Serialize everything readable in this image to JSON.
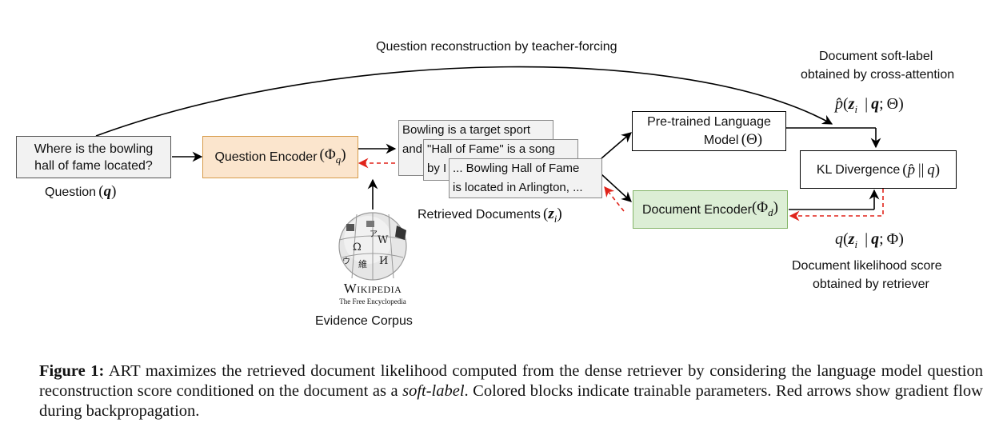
{
  "top_arrow_label": "Question reconstruction by teacher-forcing",
  "soft_label_line1": "Document soft-label",
  "soft_label_line2": "obtained by cross-attention",
  "question": {
    "line1": "Where is the bowling",
    "line2": "hall of fame located?",
    "caption_prefix": "Question",
    "symbol": "q"
  },
  "question_encoder": {
    "label": "Question Encoder",
    "symbol": "Φ",
    "subscript": "q",
    "fill": "#fbe5cd",
    "border": "#d79b4a"
  },
  "retrieved_docs": {
    "doc1_line1": "Bowling is a target sport",
    "doc1_line2": "and",
    "doc2_line1": "\"Hall of Fame\" is a song",
    "doc2_line2": "by I",
    "doc3_line1": "... Bowling Hall of Fame",
    "doc3_line2": "is located in Arlington, ...",
    "caption_prefix": "Retrieved Documents",
    "symbol": "z",
    "subscript": "i"
  },
  "plm": {
    "line1": "Pre-trained Language",
    "line2": "Model",
    "symbol": "Θ"
  },
  "kl": {
    "label": "KL Divergence",
    "p_hat": "p̂",
    "q": "q"
  },
  "document_encoder": {
    "label": "Document Encoder",
    "symbol": "Φ",
    "subscript": "d",
    "fill": "#dceed5",
    "border": "#82b366"
  },
  "p_formula": {
    "p": "p̂",
    "z": "z",
    "i": "i",
    "q": "q",
    "theta": "Θ"
  },
  "q_formula": {
    "q": "q",
    "z": "z",
    "i": "i",
    "qb": "q",
    "phi": "Φ"
  },
  "likelihood_line1": "Document likelihood score",
  "likelihood_line2": "obtained by retriever",
  "wikipedia": {
    "title": "Wikipedia",
    "subtitle": "The Free Encyclopedia",
    "caption": "Evidence Corpus",
    "glyphs": [
      "Ω",
      "W",
      "И",
      "維",
      "ウ",
      "ア"
    ]
  },
  "colors": {
    "gradient_arrow": "#e0241b",
    "forward_arrow": "#000000",
    "doc_box_fill": "#f2f2f2"
  },
  "caption": {
    "figure_label": "Figure 1:",
    "text_before_italic": "ART maximizes the retrieved document likelihood computed from the dense retriever by considering the language model question reconstruction score conditioned on the document as a ",
    "italic_text": "soft-label",
    "text_after_italic": ".  Colored blocks indicate trainable parameters. Red arrows show gradient flow during backpropagation."
  }
}
